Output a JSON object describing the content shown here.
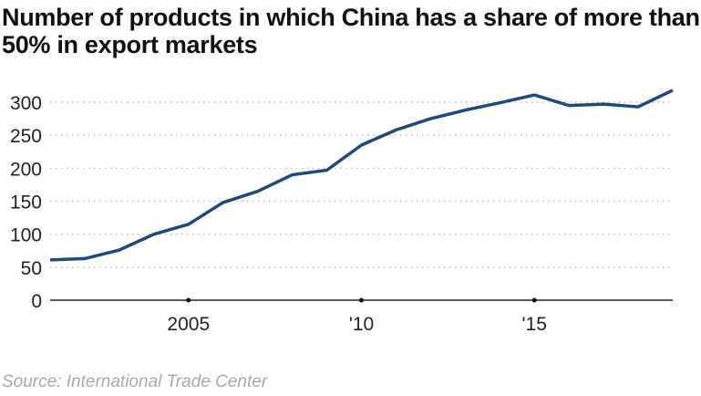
{
  "chart_data": {
    "type": "line",
    "title": "Number of products in which China has a share of more than 50% in export markets",
    "source": "Source: International Trade Center",
    "x": [
      2001,
      2002,
      2003,
      2004,
      2005,
      2006,
      2007,
      2008,
      2009,
      2010,
      2011,
      2012,
      2013,
      2014,
      2015,
      2016,
      2017,
      2018,
      2019
    ],
    "series": [
      {
        "values": [
          61,
          63,
          76,
          100,
          115,
          148,
          165,
          190,
          197,
          235,
          258,
          275,
          288,
          299,
          311,
          295,
          297,
          293,
          318
        ],
        "color": "#1f4a78"
      }
    ],
    "xticks": [
      {
        "value": 2005,
        "label": "2005"
      },
      {
        "value": 2010,
        "label": "'10"
      },
      {
        "value": 2015,
        "label": "'15"
      }
    ],
    "yticks": [
      0,
      50,
      100,
      150,
      200,
      250,
      300
    ],
    "ylim": [
      0,
      320
    ],
    "xlim": [
      2001,
      2019
    ],
    "grid": "horizontal dotted"
  }
}
